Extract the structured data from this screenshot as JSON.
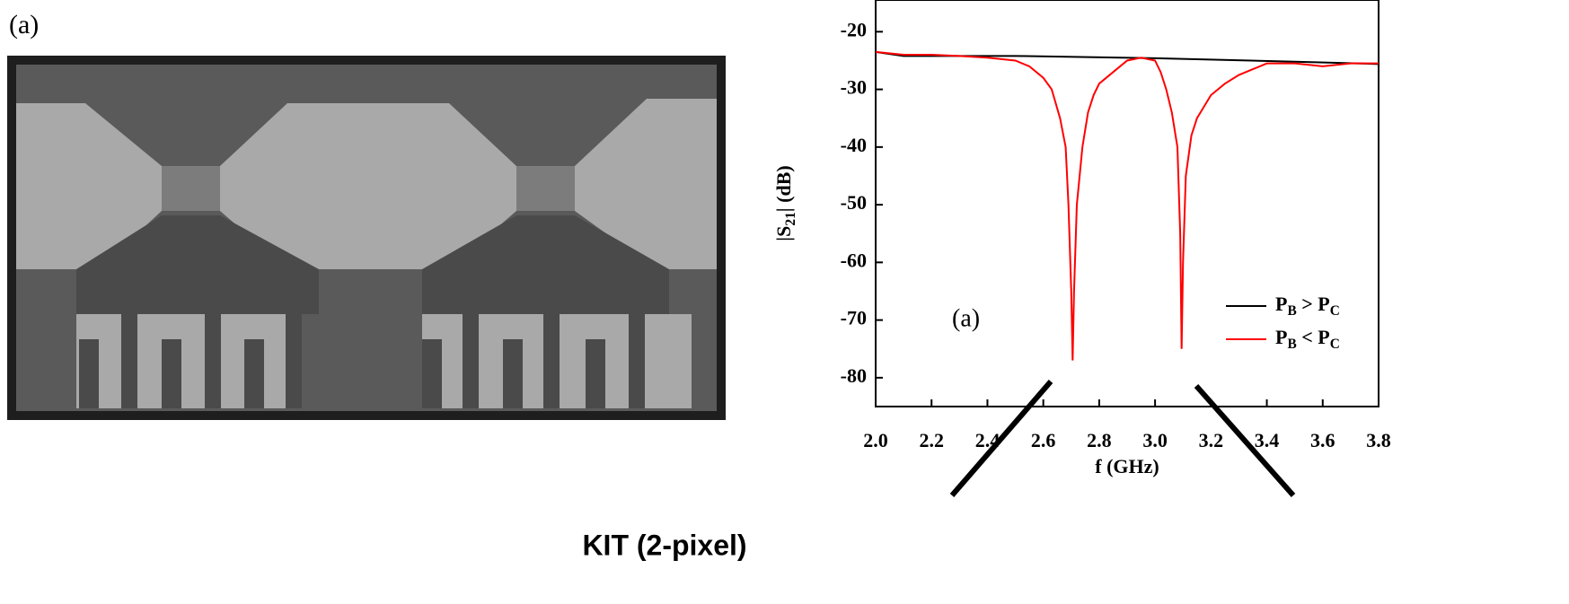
{
  "image_label": "(a)",
  "caption": "KIT (2-pixel)",
  "chart_data": {
    "type": "line",
    "annotation": "(a)",
    "x_label": "f (GHz)",
    "y_label": "|S21| (dB)",
    "xlim": [
      2.0,
      3.8
    ],
    "ylim": [
      -85,
      -14.5
    ],
    "xticks": [
      {
        "value": 2.0,
        "label": "2.0"
      },
      2.2,
      2.4,
      2.6,
      2.8,
      {
        "value": 3.0,
        "label": "3.0"
      },
      3.2,
      3.4,
      3.6,
      3.8
    ],
    "yticks": [
      -20,
      -30,
      -40,
      -50,
      -60,
      -70,
      -80
    ],
    "legend": "lower right",
    "series": [
      {
        "name": "PB > PC",
        "color": "#000000",
        "x": [
          2.0,
          2.1,
          2.5,
          3.0,
          3.5,
          3.8
        ],
        "values": [
          -23.5,
          -24.2,
          -24.2,
          -24.6,
          -25.2,
          -25.6
        ]
      },
      {
        "name": "PB < PC",
        "color": "#ff0000",
        "x": [
          2.0,
          2.1,
          2.2,
          2.3,
          2.4,
          2.5,
          2.55,
          2.6,
          2.63,
          2.66,
          2.68,
          2.69,
          2.7,
          2.705,
          2.71,
          2.72,
          2.74,
          2.76,
          2.78,
          2.8,
          2.85,
          2.9,
          2.95,
          3.0,
          3.02,
          3.04,
          3.06,
          3.08,
          3.09,
          3.095,
          3.1,
          3.11,
          3.13,
          3.15,
          3.2,
          3.25,
          3.3,
          3.35,
          3.4,
          3.5,
          3.6,
          3.7,
          3.8
        ],
        "values": [
          -23.5,
          -24,
          -24,
          -24.2,
          -24.5,
          -25,
          -26,
          -28,
          -30,
          -35,
          -40,
          -50,
          -65,
          -77,
          -65,
          -50,
          -40,
          -34,
          -31,
          -29,
          -27,
          -25,
          -24.5,
          -25,
          -27,
          -30,
          -34,
          -40,
          -55,
          -75,
          -60,
          -45,
          -38,
          -35,
          -31,
          -29,
          -27.5,
          -26.5,
          -25.5,
          -25.5,
          -26,
          -25.5,
          -25.5
        ]
      }
    ]
  }
}
